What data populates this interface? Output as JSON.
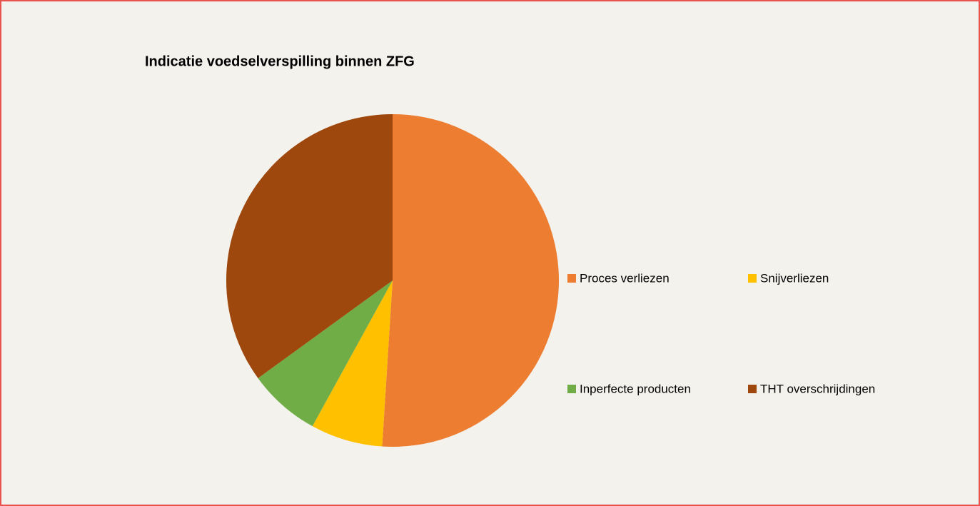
{
  "chart_data": {
    "type": "pie",
    "title": "Indicatie voedselverspilling binnen ZFG",
    "categories": [
      "Proces verliezen",
      "Snijverliezen",
      "Inperfecte producten",
      "THT overschrijdingen"
    ],
    "values": [
      51,
      7,
      7,
      35
    ],
    "colors": [
      "#ed7d31",
      "#ffc000",
      "#70ad47",
      "#9e480e"
    ],
    "legend": "right"
  }
}
